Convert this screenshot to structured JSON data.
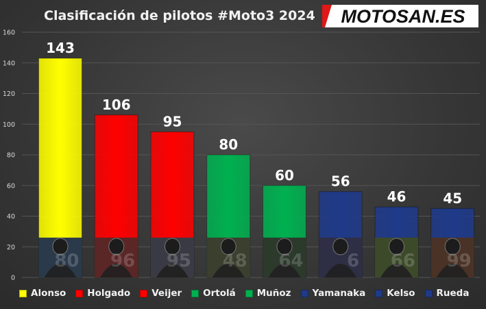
{
  "title": "Clasificación de pilotos #Moto3 2024",
  "logo": {
    "text": "MOTOSAN.ES",
    "bg": "#ffffff",
    "fg": "#111111",
    "accent": "#e01818"
  },
  "chart_data": {
    "type": "bar",
    "title": "Clasificación de pilotos #Moto3 2024",
    "xlabel": "",
    "ylabel": "",
    "ylim": [
      0,
      160
    ],
    "yticks": [
      0,
      20,
      40,
      60,
      80,
      100,
      120,
      140,
      160
    ],
    "grid": true,
    "legend_position": "bottom",
    "categories": [
      "Alonso",
      "Holgado",
      "Veijer",
      "Ortolá",
      "Muñoz",
      "Yamanaka",
      "Kelso",
      "Rueda"
    ],
    "values": [
      143,
      106,
      95,
      80,
      60,
      56,
      46,
      45
    ],
    "colors": [
      "#ffff00",
      "#ff0000",
      "#ff0000",
      "#00b050",
      "#00b050",
      "#1f3a8a",
      "#1f3a8a",
      "#1f3a8a"
    ],
    "photo_colors": [
      "#2a3a4a",
      "#5a2626",
      "#3a3a44",
      "#3a3f2e",
      "#2c3a2c",
      "#2e2f45",
      "#3c4a2a",
      "#4a3226"
    ],
    "photo_numbers": [
      "80",
      "96",
      "95",
      "48",
      "64",
      "6",
      "66",
      "99"
    ]
  }
}
